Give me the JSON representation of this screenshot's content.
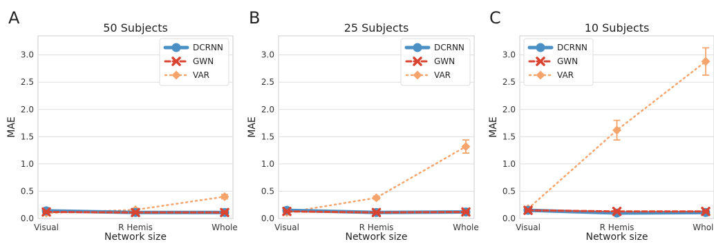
{
  "chart_data": [
    {
      "type": "line",
      "panel_letter": "A",
      "title": "50 Subjects",
      "xlabel": "Network size",
      "ylabel": "MAE",
      "categories": [
        "Visual",
        "R Hemis",
        "Whole"
      ],
      "ylim": [
        0,
        3.35
      ],
      "yticks": [
        "0.0",
        "0.5",
        "1.0",
        "1.5",
        "2.0",
        "2.5",
        "3.0"
      ],
      "grid": true,
      "legend_position": "top-right",
      "series": [
        {
          "name": "DCRNN",
          "values": [
            0.14,
            0.11,
            0.11
          ],
          "errors": [
            0.02,
            0.01,
            0.01
          ]
        },
        {
          "name": "GWN",
          "values": [
            0.12,
            0.11,
            0.11
          ],
          "errors": [
            0.01,
            0.01,
            0.01
          ]
        },
        {
          "name": "VAR",
          "values": [
            0.1,
            0.16,
            0.4
          ],
          "errors": [
            0.01,
            0.02,
            0.04
          ]
        }
      ]
    },
    {
      "type": "line",
      "panel_letter": "B",
      "title": "25 Subjects",
      "xlabel": "Network size",
      "ylabel": "MAE",
      "categories": [
        "Visual",
        "R Hemis",
        "Whole"
      ],
      "ylim": [
        0,
        3.35
      ],
      "yticks": [
        "0.0",
        "0.5",
        "1.0",
        "1.5",
        "2.0",
        "2.5",
        "3.0"
      ],
      "grid": true,
      "legend_position": "top-right",
      "series": [
        {
          "name": "DCRNN",
          "values": [
            0.15,
            0.11,
            0.12
          ],
          "errors": [
            0.02,
            0.01,
            0.01
          ]
        },
        {
          "name": "GWN",
          "values": [
            0.13,
            0.11,
            0.12
          ],
          "errors": [
            0.01,
            0.01,
            0.01
          ]
        },
        {
          "name": "VAR",
          "values": [
            0.11,
            0.38,
            1.32
          ],
          "errors": [
            0.02,
            0.03,
            0.12
          ]
        }
      ]
    },
    {
      "type": "line",
      "panel_letter": "C",
      "title": "10 Subjects",
      "xlabel": "Network size",
      "ylabel": "MAE",
      "categories": [
        "Visual",
        "R Hemis",
        "Whole"
      ],
      "ylim": [
        0,
        3.35
      ],
      "yticks": [
        "0.0",
        "0.5",
        "1.0",
        "1.5",
        "2.0",
        "2.5",
        "3.0"
      ],
      "grid": true,
      "legend_position": "top-left",
      "series": [
        {
          "name": "DCRNN",
          "values": [
            0.15,
            0.1,
            0.11
          ],
          "errors": [
            0.02,
            0.01,
            0.01
          ]
        },
        {
          "name": "GWN",
          "values": [
            0.15,
            0.13,
            0.13
          ],
          "errors": [
            0.01,
            0.01,
            0.01
          ]
        },
        {
          "name": "VAR",
          "values": [
            0.18,
            1.62,
            2.88
          ],
          "errors": [
            0.03,
            0.18,
            0.25
          ]
        }
      ]
    }
  ],
  "colors": {
    "DCRNN": "#4a90c4",
    "GWN": "#d9432f",
    "VAR": "#f5a46b",
    "grid": "#dddddd",
    "axis": "#cccccc"
  }
}
